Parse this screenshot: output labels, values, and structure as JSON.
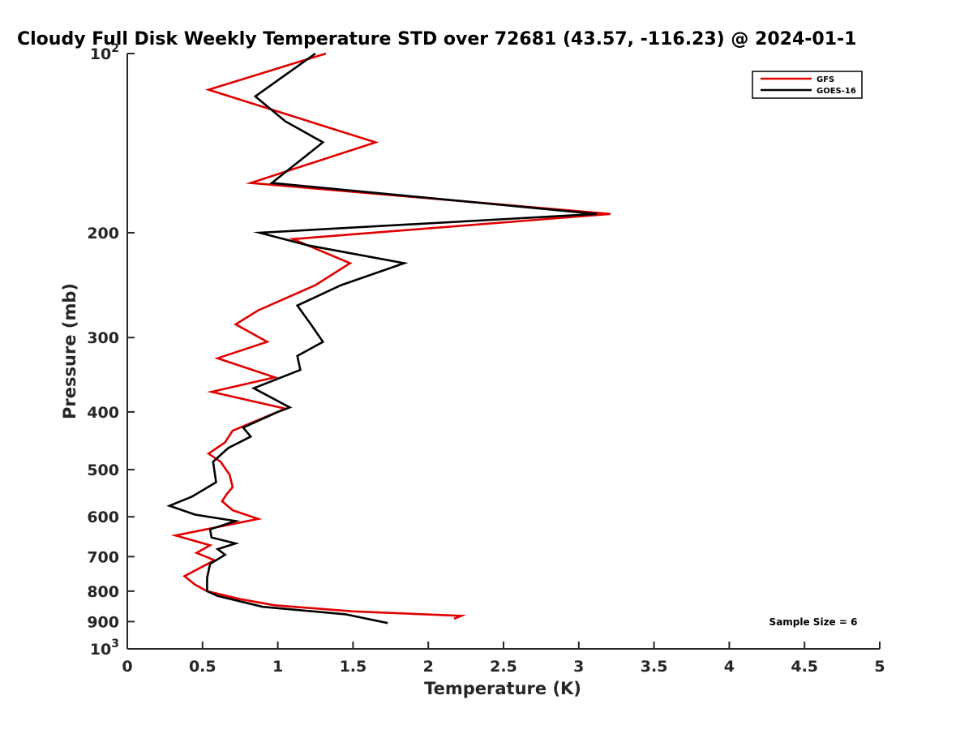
{
  "chart_data": {
    "type": "line",
    "title": "Cloudy Full Disk Weekly Temperature STD over 72681 (43.57, -116.23) @ 2024-01-1",
    "xlabel": "Temperature (K)",
    "ylabel": "Pressure (mb)",
    "xlim": [
      0,
      5
    ],
    "ylim": [
      100,
      1000
    ],
    "y_scale": "log",
    "y_reversed": true,
    "grid": false,
    "legend_position": "top-right",
    "x_ticks": [
      0,
      0.5,
      1,
      1.5,
      2,
      2.5,
      3,
      3.5,
      4,
      4.5,
      5
    ],
    "x_tick_labels": [
      "0",
      "0.5",
      "1",
      "1.5",
      "2",
      "2.5",
      "3",
      "3.5",
      "4",
      "4.5",
      "5"
    ],
    "y_ticks": [
      {
        "value": 100,
        "base": "10",
        "exp": "2"
      },
      {
        "value": 200,
        "label": "200"
      },
      {
        "value": 300,
        "label": "300"
      },
      {
        "value": 400,
        "label": "400"
      },
      {
        "value": 500,
        "label": "500"
      },
      {
        "value": 600,
        "label": "600"
      },
      {
        "value": 700,
        "label": "700"
      },
      {
        "value": 800,
        "label": "800"
      },
      {
        "value": 900,
        "label": "900"
      },
      {
        "value": 1000,
        "base": "10",
        "exp": "3"
      }
    ],
    "series": [
      {
        "name": "GFS",
        "color": "#e00000",
        "points": [
          [
            1.32,
            100
          ],
          [
            0.54,
            115
          ],
          [
            1.65,
            141
          ],
          [
            0.82,
            165
          ],
          [
            3.21,
            186
          ],
          [
            1.1,
            205
          ],
          [
            1.48,
            225
          ],
          [
            1.25,
            245
          ],
          [
            0.87,
            270
          ],
          [
            0.72,
            285
          ],
          [
            0.93,
            305
          ],
          [
            0.6,
            325
          ],
          [
            0.98,
            350
          ],
          [
            0.56,
            370
          ],
          [
            1.05,
            395
          ],
          [
            0.7,
            430
          ],
          [
            0.65,
            450
          ],
          [
            0.54,
            470
          ],
          [
            0.62,
            485
          ],
          [
            0.68,
            510
          ],
          [
            0.7,
            535
          ],
          [
            0.66,
            550
          ],
          [
            0.63,
            565
          ],
          [
            0.7,
            585
          ],
          [
            0.87,
            605
          ],
          [
            0.32,
            645
          ],
          [
            0.55,
            670
          ],
          [
            0.46,
            690
          ],
          [
            0.58,
            710
          ],
          [
            0.38,
            755
          ],
          [
            0.45,
            780
          ],
          [
            0.53,
            800
          ],
          [
            0.75,
            825
          ],
          [
            0.98,
            845
          ],
          [
            1.5,
            865
          ],
          [
            2.22,
            880
          ],
          [
            2.17,
            890
          ]
        ]
      },
      {
        "name": "GOES-16",
        "color": "#000000",
        "points": [
          [
            1.25,
            100
          ],
          [
            0.85,
            118
          ],
          [
            1.05,
            130
          ],
          [
            1.3,
            141
          ],
          [
            0.96,
            165
          ],
          [
            3.12,
            186
          ],
          [
            0.88,
            200
          ],
          [
            1.2,
            210
          ],
          [
            1.84,
            225
          ],
          [
            1.42,
            245
          ],
          [
            1.13,
            265
          ],
          [
            1.22,
            285
          ],
          [
            1.3,
            305
          ],
          [
            1.13,
            322
          ],
          [
            1.15,
            340
          ],
          [
            0.84,
            365
          ],
          [
            1.08,
            393
          ],
          [
            1.0,
            400
          ],
          [
            0.77,
            425
          ],
          [
            0.82,
            440
          ],
          [
            0.67,
            460
          ],
          [
            0.57,
            485
          ],
          [
            0.59,
            525
          ],
          [
            0.43,
            555
          ],
          [
            0.28,
            575
          ],
          [
            0.45,
            595
          ],
          [
            0.72,
            610
          ],
          [
            0.55,
            630
          ],
          [
            0.56,
            650
          ],
          [
            0.72,
            665
          ],
          [
            0.6,
            680
          ],
          [
            0.65,
            695
          ],
          [
            0.55,
            720
          ],
          [
            0.53,
            760
          ],
          [
            0.53,
            800
          ],
          [
            0.6,
            815
          ],
          [
            0.9,
            850
          ],
          [
            1.45,
            875
          ],
          [
            1.73,
            905
          ]
        ]
      }
    ],
    "legend": [
      {
        "label": "GFS",
        "color": "#e00000"
      },
      {
        "label": "GOES-16",
        "color": "#000000"
      }
    ],
    "annotation": "Sample Size = 6"
  }
}
